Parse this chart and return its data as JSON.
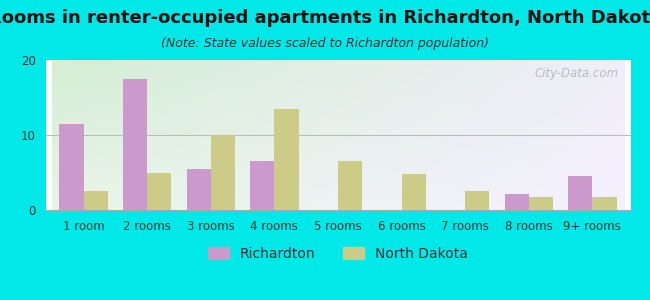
{
  "title": "Rooms in renter-occupied apartments in Richardton, North Dakota",
  "subtitle": "(Note: State values scaled to Richardton population)",
  "categories": [
    "1 room",
    "2 rooms",
    "3 rooms",
    "4 rooms",
    "5 rooms",
    "6 rooms",
    "7 rooms",
    "8 rooms",
    "9+ rooms"
  ],
  "richardton_values": [
    11.5,
    17.5,
    5.5,
    6.5,
    0,
    0,
    0,
    2.2,
    4.5
  ],
  "north_dakota_values": [
    2.5,
    5.0,
    10.0,
    13.5,
    6.5,
    4.8,
    2.5,
    1.8,
    1.8
  ],
  "richardton_color": "#cc99cc",
  "north_dakota_color": "#cccc88",
  "background_color": "#00e8e8",
  "ylim": [
    0,
    20
  ],
  "yticks": [
    0,
    10,
    20
  ],
  "bar_width": 0.38,
  "title_fontsize": 13,
  "subtitle_fontsize": 9,
  "legend_fontsize": 10,
  "tick_fontsize": 8.5,
  "watermark_text": "City-Data.com",
  "grid_color": "#bbbbbb",
  "spine_color": "#aaaaaa"
}
